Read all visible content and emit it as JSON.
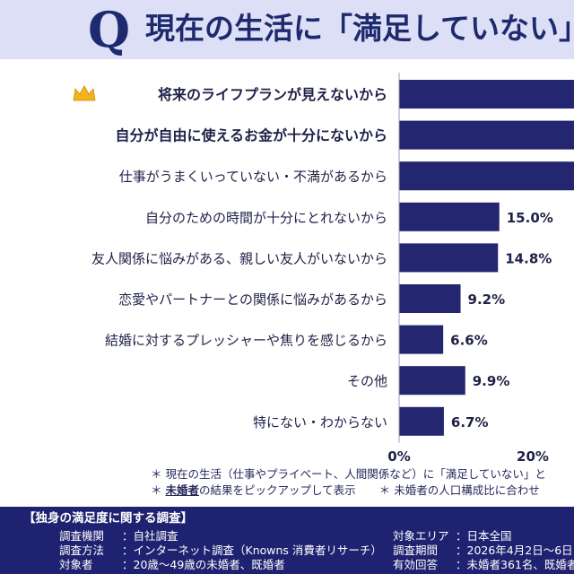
{
  "title": {
    "q_mark": "Q",
    "text": "現在の生活に「満足していない」と回"
  },
  "colors": {
    "bar": "#242670",
    "title_band": "#dcdff6",
    "footer_bg": "#1f2270",
    "crown": "#f3b41b"
  },
  "chart_data": {
    "type": "bar",
    "orientation": "horizontal",
    "categories": [
      "将来のライフプランが見えないから",
      "自分が自由に使えるお金が十分にないから",
      "仕事がうまくいっていない・不満があるから",
      "自分のための時間が十分にとれないから",
      "友人関係に悩みがある、親しい友人がいないから",
      "恋愛やパートナーとの関係に悩みがあるから",
      "結婚に対するプレッシャーや焦りを感じるから",
      "その他",
      "特にない・わからない"
    ],
    "values": [
      null,
      null,
      null,
      15.0,
      14.8,
      9.2,
      6.6,
      9.9,
      6.7
    ],
    "value_labels": [
      "",
      "",
      "",
      "15.0%",
      "14.8%",
      "9.2%",
      "6.6%",
      "9.9%",
      "6.7%"
    ],
    "highlight_first": true,
    "bold_categories": [
      0,
      1
    ],
    "x_ticks": [
      "0%",
      "20%"
    ],
    "x_tick_values": [
      0,
      20
    ],
    "xlim": [
      0,
      20
    ]
  },
  "notes": {
    "line1": "現在の生活（仕事やプライベート、人間関係など）に「満足していない」と",
    "line2_keyword": "未婚者",
    "line2_rest": "の結果をピックアップして表示",
    "line2_tail": "未婚者の人口構成比に合わせ",
    "asterisk": "＊"
  },
  "footer": {
    "heading": "【独身の満足度に関する調査】",
    "left": [
      {
        "key": "調査機関",
        "value": "：自社調査"
      },
      {
        "key": "調査方法",
        "value": "：インターネット調査（Knowns 消費者リサーチ）"
      },
      {
        "key": "対象者",
        "value": "：20歳〜49歳の未婚者、既婚者"
      }
    ],
    "right": [
      {
        "key": "対象エリア",
        "value": "：日本全国"
      },
      {
        "key": "調査期間",
        "value": "：2026年4月2日〜6日"
      },
      {
        "key": "有効回答",
        "value": "：未婚者361名、既婚者"
      }
    ]
  }
}
